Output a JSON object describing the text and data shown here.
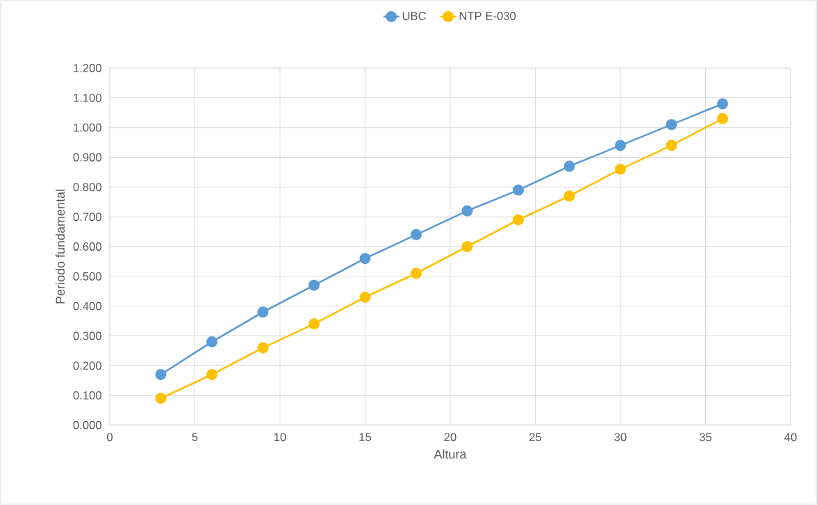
{
  "chart_data": {
    "type": "line",
    "xlabel": "Altura",
    "ylabel": "Periodo fundamental",
    "x": [
      3,
      6,
      9,
      12,
      15,
      18,
      21,
      24,
      27,
      30,
      33,
      36
    ],
    "series": [
      {
        "name": "UBC",
        "color": "#5b9bd5",
        "values": [
          0.17,
          0.28,
          0.38,
          0.47,
          0.56,
          0.64,
          0.72,
          0.79,
          0.87,
          0.94,
          1.01,
          1.08
        ]
      },
      {
        "name": "NTP E-030",
        "color": "#ffc000",
        "values": [
          0.09,
          0.17,
          0.26,
          0.34,
          0.43,
          0.51,
          0.6,
          0.69,
          0.77,
          0.86,
          0.94,
          1.03
        ]
      }
    ],
    "xlim": [
      0,
      40
    ],
    "xticks": [
      0,
      5,
      10,
      15,
      20,
      25,
      30,
      35,
      40
    ],
    "ylim": [
      0,
      1.2
    ],
    "yticks": [
      {
        "value": 0,
        "label": "0.000"
      },
      {
        "value": 0.1,
        "label": "0.100"
      },
      {
        "value": 0.2,
        "label": "0.200"
      },
      {
        "value": 0.3,
        "label": "0.300"
      },
      {
        "value": 0.4,
        "label": "0.400"
      },
      {
        "value": 0.5,
        "label": "0.500"
      },
      {
        "value": 0.6,
        "label": "0.600"
      },
      {
        "value": 0.7,
        "label": "0.700"
      },
      {
        "value": 0.8,
        "label": "0.800"
      },
      {
        "value": 0.9,
        "label": "0.900"
      },
      {
        "value": 1.0,
        "label": "1.000"
      },
      {
        "value": 1.1,
        "label": "1.100"
      },
      {
        "value": 1.2,
        "label": "1.200"
      }
    ],
    "grid": true,
    "legend": "top",
    "marker": "circle",
    "line_style": "solid"
  }
}
